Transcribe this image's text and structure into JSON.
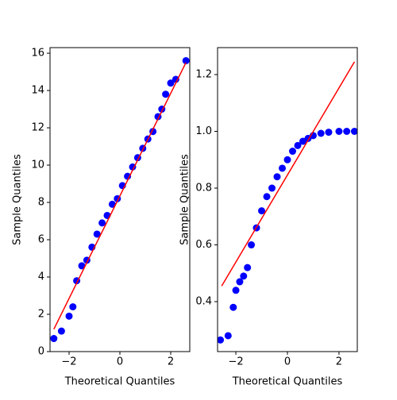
{
  "chart_data": [
    {
      "type": "scatter",
      "xlabel": "Theoretical Quantiles",
      "ylabel": "Sample Quantiles",
      "xlim": [
        -2.75,
        2.75
      ],
      "ylim": [
        0,
        16.3
      ],
      "xticks": [
        {
          "value": -2,
          "label": "−2"
        },
        0,
        2
      ],
      "yticks": [
        0,
        2,
        4,
        6,
        8,
        10,
        12,
        14,
        16
      ],
      "points": {
        "color": "#0000ff",
        "x": [
          -2.6,
          -2.3,
          -2.0,
          -1.85,
          -1.7,
          -1.5,
          -1.3,
          -1.1,
          -0.9,
          -0.7,
          -0.5,
          -0.3,
          -0.1,
          0.1,
          0.3,
          0.5,
          0.7,
          0.9,
          1.1,
          1.3,
          1.5,
          1.65,
          1.8,
          2.0,
          2.2,
          2.6
        ],
        "values": [
          0.7,
          1.1,
          1.9,
          2.4,
          3.8,
          4.6,
          4.9,
          5.6,
          6.3,
          6.9,
          7.3,
          7.9,
          8.2,
          8.9,
          9.4,
          9.9,
          10.4,
          10.9,
          11.4,
          11.8,
          12.6,
          13.0,
          13.8,
          14.4,
          14.6,
          15.6
        ]
      },
      "line": {
        "color": "#ff0000",
        "x": [
          -2.6,
          2.6
        ],
        "values": [
          1.2,
          15.5
        ]
      }
    },
    {
      "type": "scatter",
      "xlabel": "Theoretical Quantiles",
      "ylabel": "Sample Quantiles",
      "xlim": [
        -2.71,
        2.71
      ],
      "ylim": [
        0.224,
        1.295
      ],
      "xticks": [
        {
          "value": -2,
          "label": "−2"
        },
        0,
        2
      ],
      "yticks": [
        0.4,
        0.6,
        0.8,
        {
          "value": 1,
          "label": "1.0"
        },
        1.2
      ],
      "points": {
        "color": "#0000ff",
        "x": [
          -2.6,
          -2.3,
          -2.1,
          -2.0,
          -1.85,
          -1.7,
          -1.55,
          -1.4,
          -1.2,
          -1.0,
          -0.8,
          -0.6,
          -0.4,
          -0.2,
          0,
          0.2,
          0.4,
          0.6,
          0.8,
          1.0,
          1.3,
          1.6,
          2.0,
          2.3,
          2.6
        ],
        "values": [
          0.265,
          0.28,
          0.38,
          0.44,
          0.47,
          0.49,
          0.52,
          0.6,
          0.66,
          0.72,
          0.77,
          0.8,
          0.84,
          0.87,
          0.9,
          0.93,
          0.95,
          0.965,
          0.975,
          0.985,
          0.993,
          0.997,
          1.0,
          1.0,
          1.0
        ]
      },
      "line": {
        "color": "#ff0000",
        "x": [
          -2.55,
          2.6
        ],
        "values": [
          0.455,
          1.245
        ]
      }
    }
  ]
}
